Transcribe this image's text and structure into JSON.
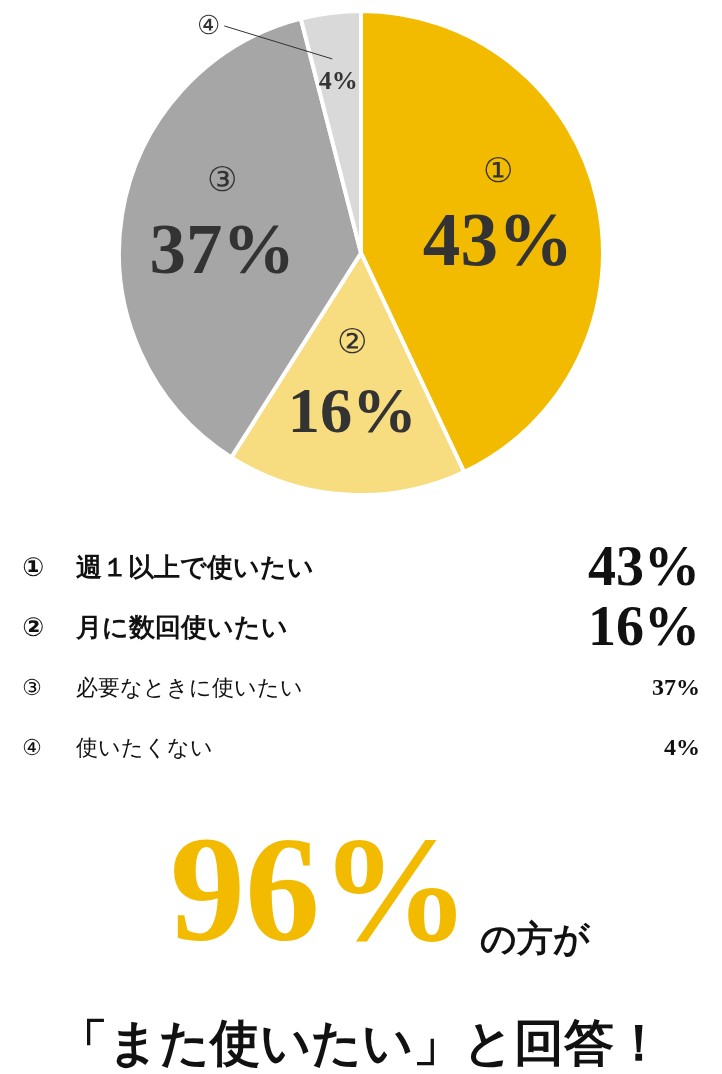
{
  "chart_data": {
    "type": "pie",
    "categories": [
      "①",
      "②",
      "③",
      "④"
    ],
    "values": [
      43,
      16,
      37,
      4
    ],
    "colors": [
      "#f2bb00",
      "#f7dc80",
      "#a6a6a6",
      "#d9d9d9"
    ],
    "value_labels": [
      "43%",
      "16%",
      "37%",
      "4%"
    ],
    "annotations": [
      {
        "text": "週１以上で使いたい",
        "x": "①"
      },
      {
        "text": "月に数回使いたい",
        "x": "②"
      },
      {
        "text": "必要なときに使いたい",
        "x": "③"
      },
      {
        "text": "使いたくない",
        "x": "④"
      },
      "96%",
      "の方が",
      "「また使いたい」と回答！"
    ]
  }
}
